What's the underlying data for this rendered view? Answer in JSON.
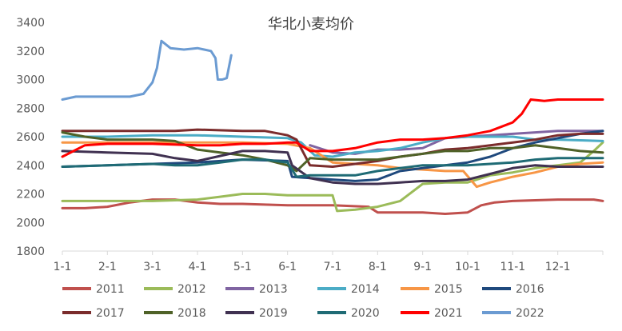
{
  "chart_data": {
    "type": "line",
    "title": "华北小麦均价",
    "xlabel": "",
    "ylabel": "",
    "ylim": [
      1800,
      3400
    ],
    "yticks": [
      1800,
      2000,
      2200,
      2400,
      2600,
      2800,
      3000,
      3200,
      3400
    ],
    "xlim": [
      0,
      12
    ],
    "xticks": [
      {
        "label": "1-1",
        "x": 0
      },
      {
        "label": "2-1",
        "x": 1
      },
      {
        "label": "3-1",
        "x": 2
      },
      {
        "label": "4-1",
        "x": 3
      },
      {
        "label": "5-1",
        "x": 4
      },
      {
        "label": "6-1",
        "x": 5
      },
      {
        "label": "7-1",
        "x": 6
      },
      {
        "label": "8-1",
        "x": 7
      },
      {
        "label": "9-1",
        "x": 8
      },
      {
        "label": "10-1",
        "x": 9
      },
      {
        "label": "11-1",
        "x": 10
      },
      {
        "label": "12-1",
        "x": 11
      }
    ],
    "grid": false,
    "legend_position": "bottom",
    "series": [
      {
        "name": "2011",
        "color": "#c0504d",
        "points": [
          [
            0,
            2100
          ],
          [
            0.5,
            2100
          ],
          [
            1,
            2110
          ],
          [
            1.5,
            2140
          ],
          [
            2,
            2160
          ],
          [
            2.5,
            2160
          ],
          [
            3,
            2140
          ],
          [
            3.5,
            2130
          ],
          [
            4,
            2130
          ],
          [
            5,
            2120
          ],
          [
            6,
            2120
          ],
          [
            6.8,
            2110
          ],
          [
            7,
            2070
          ],
          [
            8,
            2070
          ],
          [
            8.5,
            2060
          ],
          [
            9,
            2070
          ],
          [
            9.3,
            2120
          ],
          [
            9.6,
            2140
          ],
          [
            10,
            2150
          ],
          [
            11,
            2160
          ],
          [
            11.8,
            2160
          ],
          [
            12,
            2150
          ]
        ]
      },
      {
        "name": "2012",
        "color": "#9bbb59",
        "points": [
          [
            0,
            2150
          ],
          [
            1,
            2150
          ],
          [
            2,
            2150
          ],
          [
            3,
            2160
          ],
          [
            3.5,
            2180
          ],
          [
            4,
            2200
          ],
          [
            4.5,
            2200
          ],
          [
            5,
            2190
          ],
          [
            6,
            2190
          ],
          [
            6.1,
            2080
          ],
          [
            6.5,
            2090
          ],
          [
            7,
            2110
          ],
          [
            7.5,
            2150
          ],
          [
            8,
            2270
          ],
          [
            8.5,
            2280
          ],
          [
            9,
            2280
          ],
          [
            9.5,
            2330
          ],
          [
            10,
            2350
          ],
          [
            10.5,
            2380
          ],
          [
            11,
            2400
          ],
          [
            11.5,
            2420
          ],
          [
            11.8,
            2500
          ],
          [
            12,
            2560
          ]
        ]
      },
      {
        "name": "2013",
        "color": "#8064a2",
        "points": [
          [
            5.5,
            2540
          ],
          [
            6,
            2490
          ],
          [
            6.5,
            2480
          ],
          [
            7,
            2510
          ],
          [
            7.5,
            2510
          ],
          [
            8,
            2520
          ],
          [
            8.5,
            2590
          ],
          [
            9,
            2600
          ],
          [
            9.5,
            2610
          ],
          [
            10,
            2620
          ],
          [
            10.5,
            2630
          ],
          [
            11,
            2640
          ],
          [
            12,
            2640
          ]
        ]
      },
      {
        "name": "2014",
        "color": "#4bacc6",
        "points": [
          [
            0,
            2600
          ],
          [
            1,
            2600
          ],
          [
            2,
            2610
          ],
          [
            3,
            2610
          ],
          [
            4,
            2600
          ],
          [
            5,
            2590
          ],
          [
            5.3,
            2560
          ],
          [
            5.6,
            2470
          ],
          [
            6,
            2460
          ],
          [
            6.5,
            2490
          ],
          [
            7,
            2500
          ],
          [
            7.5,
            2520
          ],
          [
            8,
            2560
          ],
          [
            8.5,
            2590
          ],
          [
            9,
            2600
          ],
          [
            9.5,
            2600
          ],
          [
            10,
            2600
          ],
          [
            10.5,
            2580
          ],
          [
            11,
            2580
          ],
          [
            12,
            2570
          ]
        ]
      },
      {
        "name": "2015",
        "color": "#f79646",
        "points": [
          [
            0,
            2560
          ],
          [
            1,
            2560
          ],
          [
            2,
            2560
          ],
          [
            3,
            2560
          ],
          [
            4,
            2560
          ],
          [
            5,
            2550
          ],
          [
            5.5,
            2520
          ],
          [
            6,
            2420
          ],
          [
            6.5,
            2410
          ],
          [
            7,
            2400
          ],
          [
            7.5,
            2380
          ],
          [
            8,
            2370
          ],
          [
            8.5,
            2360
          ],
          [
            8.9,
            2360
          ],
          [
            9.2,
            2250
          ],
          [
            9.5,
            2280
          ],
          [
            10,
            2320
          ],
          [
            10.5,
            2350
          ],
          [
            11,
            2390
          ],
          [
            11.5,
            2410
          ],
          [
            12,
            2420
          ]
        ]
      },
      {
        "name": "2016",
        "color": "#1f497d",
        "points": [
          [
            0,
            2390
          ],
          [
            1,
            2400
          ],
          [
            2,
            2410
          ],
          [
            3,
            2420
          ],
          [
            4,
            2440
          ],
          [
            5,
            2430
          ],
          [
            5.1,
            2320
          ],
          [
            5.5,
            2310
          ],
          [
            6,
            2300
          ],
          [
            6.5,
            2290
          ],
          [
            7,
            2300
          ],
          [
            7.5,
            2360
          ],
          [
            8,
            2380
          ],
          [
            8.5,
            2400
          ],
          [
            9,
            2420
          ],
          [
            9.5,
            2460
          ],
          [
            10,
            2520
          ],
          [
            10.5,
            2560
          ],
          [
            11,
            2590
          ],
          [
            11.5,
            2620
          ],
          [
            12,
            2640
          ]
        ]
      },
      {
        "name": "2017",
        "color": "#7b2c2c",
        "points": [
          [
            0,
            2640
          ],
          [
            1,
            2640
          ],
          [
            2,
            2640
          ],
          [
            2.5,
            2640
          ],
          [
            3,
            2650
          ],
          [
            4,
            2640
          ],
          [
            4.5,
            2640
          ],
          [
            5,
            2610
          ],
          [
            5.2,
            2580
          ],
          [
            5.5,
            2400
          ],
          [
            6,
            2390
          ],
          [
            6.5,
            2410
          ],
          [
            7,
            2430
          ],
          [
            7.5,
            2460
          ],
          [
            8,
            2480
          ],
          [
            8.5,
            2510
          ],
          [
            9,
            2520
          ],
          [
            9.5,
            2540
          ],
          [
            10,
            2560
          ],
          [
            10.5,
            2580
          ],
          [
            11,
            2610
          ],
          [
            11.5,
            2620
          ],
          [
            12,
            2620
          ]
        ]
      },
      {
        "name": "2018",
        "color": "#4f6228",
        "points": [
          [
            0,
            2630
          ],
          [
            0.5,
            2600
          ],
          [
            1,
            2580
          ],
          [
            2,
            2580
          ],
          [
            2.5,
            2570
          ],
          [
            3,
            2510
          ],
          [
            3.5,
            2490
          ],
          [
            4,
            2470
          ],
          [
            4.5,
            2440
          ],
          [
            5,
            2400
          ],
          [
            5.2,
            2360
          ],
          [
            5.5,
            2450
          ],
          [
            6,
            2440
          ],
          [
            6.5,
            2440
          ],
          [
            7,
            2440
          ],
          [
            7.5,
            2460
          ],
          [
            8,
            2480
          ],
          [
            8.5,
            2500
          ],
          [
            9,
            2500
          ],
          [
            9.5,
            2520
          ],
          [
            10,
            2520
          ],
          [
            10.5,
            2540
          ],
          [
            11,
            2520
          ],
          [
            11.5,
            2500
          ],
          [
            12,
            2490
          ]
        ]
      },
      {
        "name": "2019",
        "color": "#403151",
        "points": [
          [
            0,
            2500
          ],
          [
            1,
            2490
          ],
          [
            2,
            2480
          ],
          [
            2.5,
            2450
          ],
          [
            3,
            2430
          ],
          [
            4,
            2500
          ],
          [
            4.5,
            2500
          ],
          [
            5,
            2490
          ],
          [
            5.1,
            2400
          ],
          [
            5.5,
            2310
          ],
          [
            6,
            2280
          ],
          [
            6.5,
            2270
          ],
          [
            7,
            2270
          ],
          [
            7.5,
            2280
          ],
          [
            8,
            2290
          ],
          [
            8.5,
            2290
          ],
          [
            9,
            2300
          ],
          [
            9.5,
            2340
          ],
          [
            10,
            2380
          ],
          [
            10.5,
            2400
          ],
          [
            11,
            2390
          ],
          [
            11.5,
            2390
          ],
          [
            12,
            2390
          ]
        ]
      },
      {
        "name": "2020",
        "color": "#1f6b75",
        "points": [
          [
            0,
            2390
          ],
          [
            1,
            2400
          ],
          [
            2,
            2410
          ],
          [
            2.5,
            2400
          ],
          [
            3,
            2400
          ],
          [
            3.5,
            2420
          ],
          [
            4,
            2440
          ],
          [
            4.5,
            2440
          ],
          [
            5,
            2420
          ],
          [
            5.2,
            2320
          ],
          [
            5.5,
            2330
          ],
          [
            6,
            2330
          ],
          [
            6.5,
            2330
          ],
          [
            7,
            2360
          ],
          [
            7.5,
            2380
          ],
          [
            8,
            2400
          ],
          [
            8.5,
            2400
          ],
          [
            9,
            2400
          ],
          [
            9.5,
            2410
          ],
          [
            10,
            2420
          ],
          [
            10.5,
            2440
          ],
          [
            11,
            2450
          ],
          [
            12,
            2450
          ]
        ]
      },
      {
        "name": "2021",
        "color": "#ff0000",
        "points": [
          [
            0,
            2460
          ],
          [
            0.5,
            2540
          ],
          [
            1,
            2550
          ],
          [
            2,
            2550
          ],
          [
            3,
            2540
          ],
          [
            3.5,
            2540
          ],
          [
            4,
            2550
          ],
          [
            4.5,
            2550
          ],
          [
            5,
            2560
          ],
          [
            5.2,
            2560
          ],
          [
            5.5,
            2500
          ],
          [
            6,
            2500
          ],
          [
            6.5,
            2520
          ],
          [
            7,
            2560
          ],
          [
            7.5,
            2580
          ],
          [
            8,
            2580
          ],
          [
            8.5,
            2590
          ],
          [
            9,
            2610
          ],
          [
            9.5,
            2640
          ],
          [
            10,
            2700
          ],
          [
            10.2,
            2760
          ],
          [
            10.4,
            2860
          ],
          [
            10.7,
            2850
          ],
          [
            11,
            2860
          ],
          [
            11.5,
            2860
          ],
          [
            12,
            2860
          ]
        ]
      },
      {
        "name": "2022",
        "color": "#6b9bd2",
        "points": [
          [
            0,
            2860
          ],
          [
            0.3,
            2880
          ],
          [
            1,
            2880
          ],
          [
            1.5,
            2880
          ],
          [
            1.8,
            2900
          ],
          [
            2,
            2980
          ],
          [
            2.1,
            3080
          ],
          [
            2.2,
            3270
          ],
          [
            2.4,
            3220
          ],
          [
            2.7,
            3210
          ],
          [
            3,
            3220
          ],
          [
            3.3,
            3200
          ],
          [
            3.4,
            3150
          ],
          [
            3.45,
            3000
          ],
          [
            3.55,
            3000
          ],
          [
            3.65,
            3010
          ],
          [
            3.75,
            3170
          ]
        ]
      }
    ]
  }
}
